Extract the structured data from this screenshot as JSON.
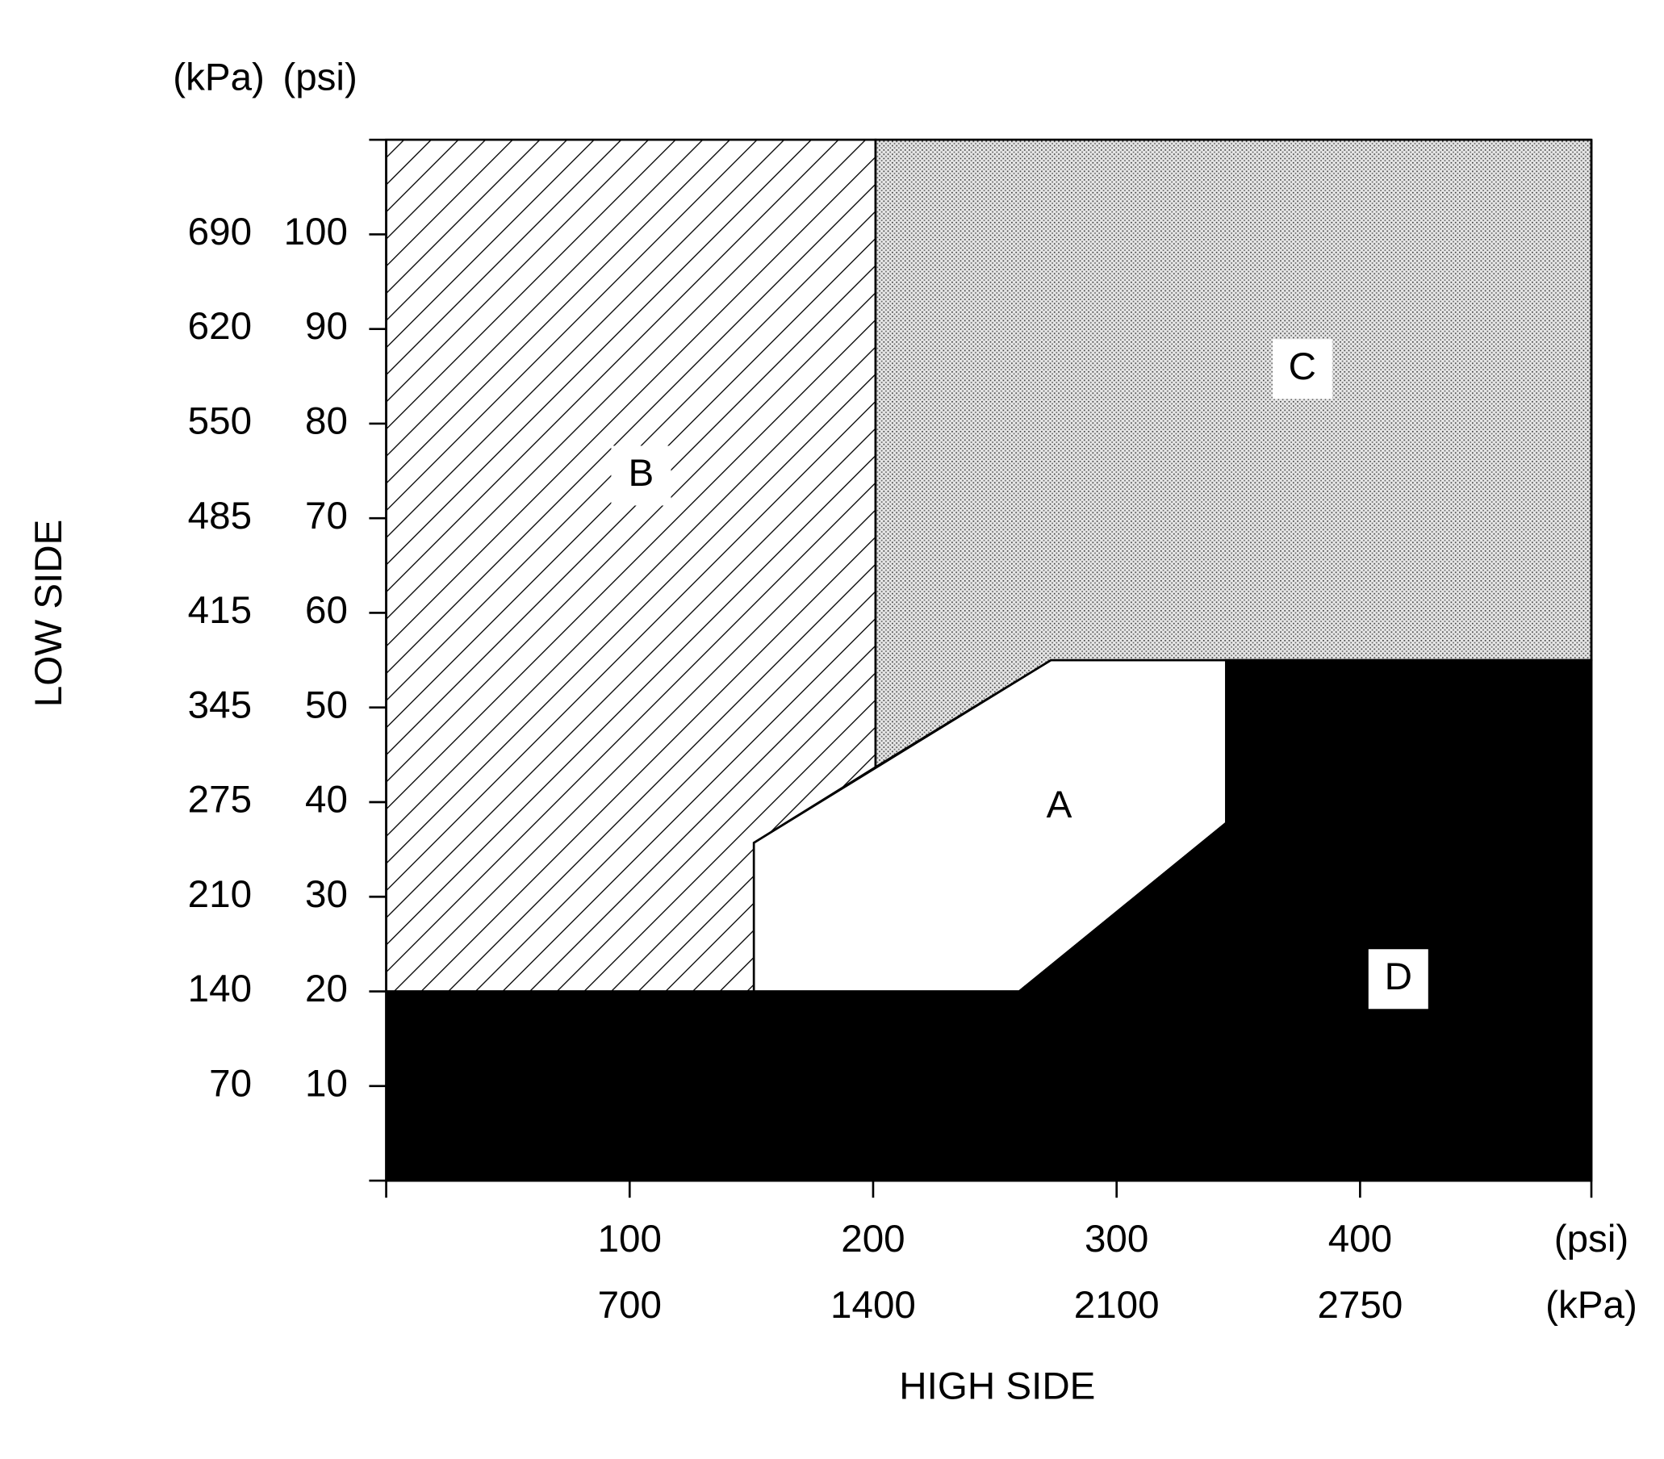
{
  "chart_data": {
    "type": "region",
    "x_label": "HIGH SIDE",
    "y_label": "LOW SIDE",
    "x_units": [
      "(psi)",
      "(kPa)"
    ],
    "y_units": [
      "(kPa)",
      "(psi)"
    ],
    "xlim": [
      0,
      495
    ],
    "ylim": [
      0,
      110
    ],
    "xticks": [
      100,
      200,
      300,
      400
    ],
    "xticks_kpa": [
      700,
      1400,
      2100,
      2750
    ],
    "yticks": [
      10,
      20,
      30,
      40,
      50,
      60,
      70,
      80,
      90,
      100
    ],
    "yticks_kpa": [
      70,
      140,
      210,
      275,
      345,
      415,
      485,
      550,
      620,
      690
    ],
    "series": [
      {
        "name": "A",
        "pattern": "solid",
        "color": "#ffffff",
        "x": [
          151,
          151,
          273,
          345,
          345,
          260
        ],
        "values": [
          20,
          35.7,
          55,
          55,
          37.8,
          20
        ]
      },
      {
        "name": "B",
        "pattern": "hatch",
        "color": "#000000",
        "x": [
          0,
          201,
          201,
          151,
          151,
          0
        ],
        "values": [
          110,
          110,
          43.7,
          35.7,
          20,
          20
        ]
      },
      {
        "name": "C",
        "pattern": "dots",
        "color": "#000000",
        "x": [
          201,
          495,
          495,
          273,
          201
        ],
        "values": [
          110,
          110,
          55,
          55,
          43.7
        ]
      },
      {
        "name": "D",
        "pattern": "solid",
        "color": "#000000",
        "x": [
          0,
          495,
          495,
          345,
          345,
          260,
          0
        ],
        "values": [
          0,
          0,
          55,
          55,
          37.8,
          20,
          20
        ]
      }
    ]
  }
}
